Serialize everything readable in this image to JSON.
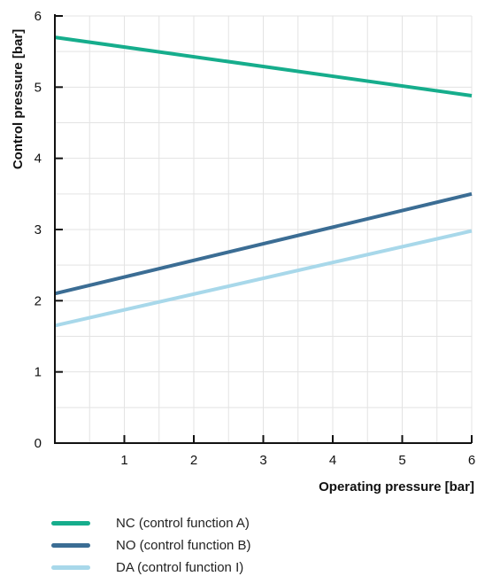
{
  "chart_data": {
    "type": "line",
    "xlabel": "Operating pressure [bar]",
    "ylabel": "Control pressure [bar]",
    "xlim": [
      0,
      6
    ],
    "ylim": [
      0,
      6
    ],
    "x_ticks": [
      "1",
      "2",
      "3",
      "4",
      "5",
      "6"
    ],
    "y_ticks": [
      "0",
      "1",
      "2",
      "3",
      "4",
      "5",
      "6"
    ],
    "grid": true,
    "legend_position": "bottom",
    "series": [
      {
        "name": "NC (control function A)",
        "color": "#16ad8c",
        "x": [
          0,
          6
        ],
        "y": [
          5.7,
          4.88
        ]
      },
      {
        "name": "NO (control function B)",
        "color": "#3b6d94",
        "x": [
          0,
          6
        ],
        "y": [
          2.1,
          3.5
        ]
      },
      {
        "name": "DA (control function I)",
        "color": "#a8d8ea",
        "x": [
          0,
          6
        ],
        "y": [
          1.65,
          2.98
        ]
      }
    ]
  }
}
